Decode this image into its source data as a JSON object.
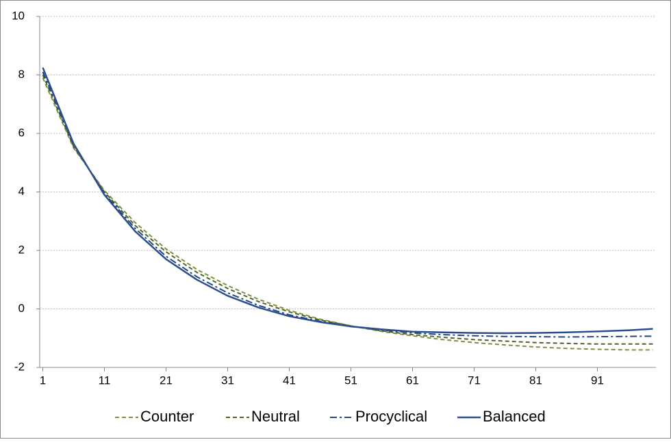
{
  "chart_data": {
    "type": "line",
    "x": [
      1,
      6,
      11,
      16,
      21,
      26,
      31,
      36,
      41,
      46,
      51,
      56,
      61,
      66,
      71,
      76,
      81,
      86,
      91,
      96,
      100
    ],
    "xlim": [
      0.5,
      100.5
    ],
    "xticks": [
      1,
      11,
      21,
      31,
      41,
      51,
      61,
      71,
      81,
      91
    ],
    "ylim": [
      -2,
      10
    ],
    "yticks": [
      -2,
      0,
      2,
      4,
      6,
      8,
      10
    ],
    "grid": true,
    "legend": "bottom",
    "series": [
      {
        "name": "Counter",
        "color": "#77933c",
        "style": "dash",
        "values": [
          7.9,
          5.5,
          4.05,
          2.95,
          2.05,
          1.35,
          0.8,
          0.33,
          -0.05,
          -0.35,
          -0.58,
          -0.77,
          -0.92,
          -1.05,
          -1.15,
          -1.23,
          -1.3,
          -1.35,
          -1.38,
          -1.4,
          -1.4
        ]
      },
      {
        "name": "Neutral",
        "color": "#4f6228",
        "style": "dash",
        "values": [
          8.0,
          5.55,
          4.0,
          2.85,
          1.95,
          1.25,
          0.7,
          0.25,
          -0.1,
          -0.38,
          -0.58,
          -0.75,
          -0.88,
          -0.97,
          -1.05,
          -1.1,
          -1.15,
          -1.18,
          -1.2,
          -1.2,
          -1.2
        ]
      },
      {
        "name": "Procyclical",
        "color": "#1f497d",
        "style": "dashdot",
        "values": [
          8.1,
          5.6,
          3.95,
          2.75,
          1.8,
          1.1,
          0.55,
          0.12,
          -0.2,
          -0.42,
          -0.6,
          -0.72,
          -0.82,
          -0.88,
          -0.92,
          -0.94,
          -0.95,
          -0.96,
          -0.95,
          -0.94,
          -0.93
        ]
      },
      {
        "name": "Balanced",
        "color": "#2c4d8f",
        "style": "solid",
        "values": [
          8.25,
          5.65,
          3.9,
          2.65,
          1.7,
          1.0,
          0.45,
          0.05,
          -0.25,
          -0.45,
          -0.6,
          -0.7,
          -0.78,
          -0.8,
          -0.82,
          -0.83,
          -0.82,
          -0.8,
          -0.77,
          -0.73,
          -0.68
        ]
      }
    ]
  }
}
